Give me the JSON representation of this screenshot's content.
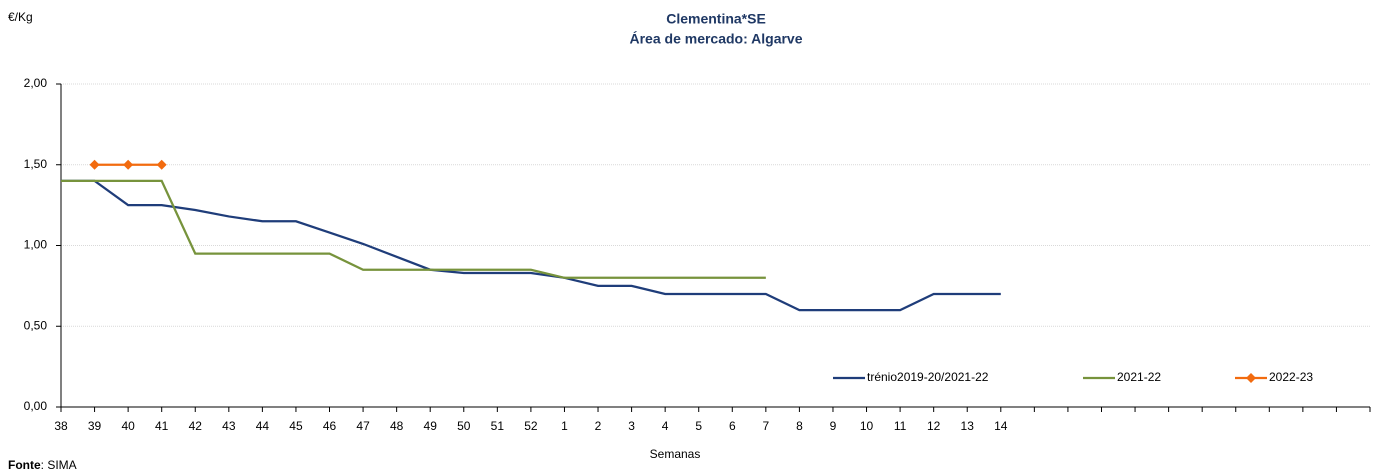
{
  "chart_data": {
    "type": "line",
    "title": "Clementina*SE",
    "subtitle": "Área de mercado: Algarve",
    "y_axis_label": "€/Kg",
    "x_axis_label": "Semanas",
    "source_label": "Fonte",
    "source": ": SIMA",
    "categories": [
      "38",
      "39",
      "40",
      "41",
      "42",
      "43",
      "44",
      "45",
      "46",
      "47",
      "48",
      "49",
      "50",
      "51",
      "52",
      "1",
      "2",
      "3",
      "4",
      "5",
      "6",
      "7",
      "8",
      "9",
      "10",
      "11",
      "12",
      "13",
      "14",
      null,
      null,
      null,
      null,
      null,
      null,
      null,
      null,
      null,
      null,
      null
    ],
    "series": [
      {
        "name": "trénio2019-20/2021-22",
        "color": "#1f3d7a",
        "values": [
          1.4,
          1.4,
          1.25,
          1.25,
          1.22,
          1.18,
          1.15,
          1.15,
          1.08,
          1.01,
          0.93,
          0.85,
          0.83,
          0.83,
          0.83,
          0.8,
          0.75,
          0.75,
          0.7,
          0.7,
          0.7,
          0.7,
          0.6,
          0.6,
          0.6,
          0.6,
          0.7,
          0.7,
          0.7,
          null,
          null,
          null,
          null,
          null,
          null,
          null,
          null,
          null,
          null,
          null
        ]
      },
      {
        "name": "2021-22",
        "color": "#77933c",
        "values": [
          1.4,
          1.4,
          1.4,
          1.4,
          0.95,
          0.95,
          0.95,
          0.95,
          0.95,
          0.85,
          0.85,
          0.85,
          0.85,
          0.85,
          0.85,
          0.8,
          0.8,
          0.8,
          0.8,
          0.8,
          0.8,
          0.8,
          null,
          null,
          null,
          null,
          null,
          null,
          null,
          null,
          null,
          null,
          null,
          null,
          null,
          null,
          null,
          null,
          null,
          null
        ]
      },
      {
        "name": "2022-23",
        "color": "#f26b0f",
        "marker": "diamond",
        "values": [
          null,
          1.5,
          1.5,
          1.5,
          null,
          null,
          null,
          null,
          null,
          null,
          null,
          null,
          null,
          null,
          null,
          null,
          null,
          null,
          null,
          null,
          null,
          null,
          null,
          null,
          null,
          null,
          null,
          null,
          null,
          null,
          null,
          null,
          null,
          null,
          null,
          null,
          null,
          null,
          null,
          null
        ]
      }
    ],
    "ylim": [
      0,
      2
    ],
    "yticks": [
      {
        "value": 0,
        "label": "0,00"
      },
      {
        "value": 0.5,
        "label": "0,50"
      },
      {
        "value": 1,
        "label": "1,00"
      },
      {
        "value": 1.5,
        "label": "1,50"
      },
      {
        "value": 2,
        "label": "2,00"
      }
    ],
    "grid": true,
    "legend": "bottom-right"
  }
}
